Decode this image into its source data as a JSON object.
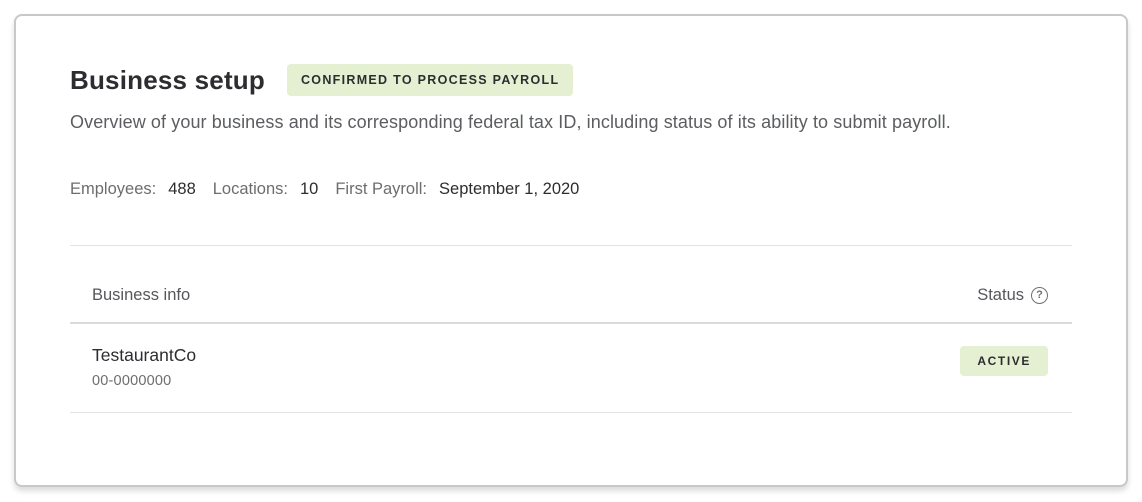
{
  "header": {
    "title": "Business setup",
    "badge": "CONFIRMED TO PROCESS PAYROLL",
    "description": "Overview of your business and its corresponding federal tax ID, including status of its ability to submit payroll."
  },
  "stats": [
    {
      "label": "Employees:",
      "value": "488"
    },
    {
      "label": "Locations:",
      "value": "10"
    },
    {
      "label": "First Payroll:",
      "value": "September 1, 2020"
    }
  ],
  "table": {
    "columns": {
      "business_info": "Business info",
      "status": "Status"
    },
    "help_icon": {
      "name": "question-circle-icon",
      "glyph": "?"
    },
    "rows": [
      {
        "name": "TestaurantCo",
        "ein": "00-0000000",
        "status": "ACTIVE"
      }
    ]
  },
  "colors": {
    "badge_background": "#e5efd2",
    "badge_text": "#2c2d30",
    "card_border": "#c8c8c8",
    "divider": "#e3e3e3",
    "title_text": "#2c2d30",
    "secondary_text": "#6b6d70"
  }
}
